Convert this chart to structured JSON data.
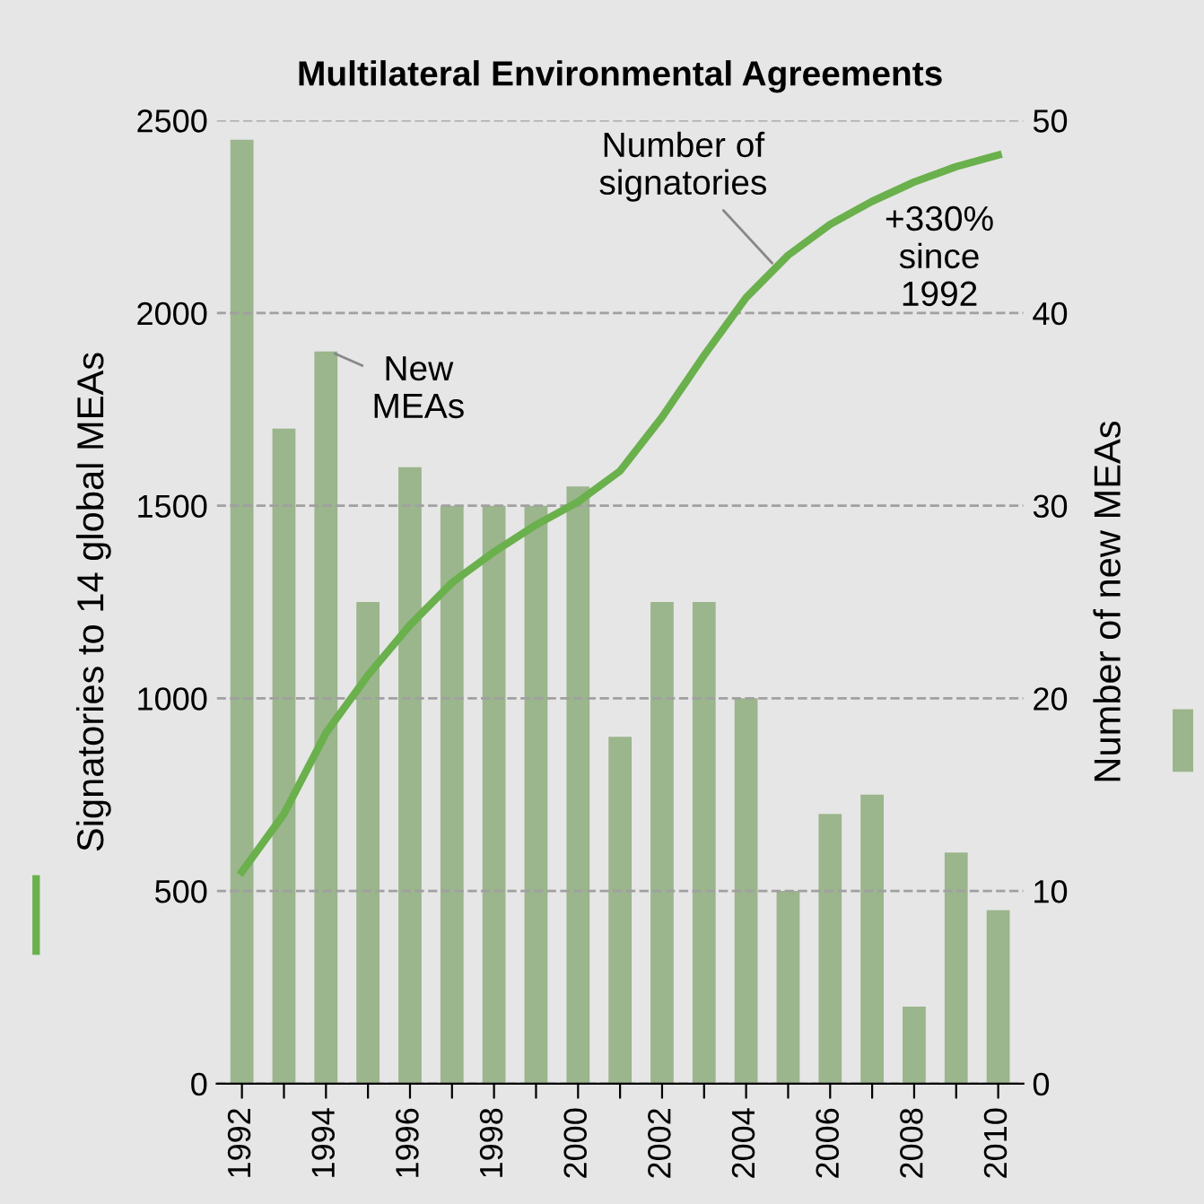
{
  "chart_data": {
    "type": "bar",
    "title": "Multilateral Environmental Agreements",
    "ylabel": "Signatories to 14 global MEAs",
    "y2label": "Number of new MEAs",
    "categories": [
      "1992",
      null,
      "1994",
      null,
      "1996",
      null,
      "1998",
      null,
      "2000",
      null,
      "2002",
      null,
      "2004",
      null,
      "2006",
      null,
      "2008",
      null,
      "2010"
    ],
    "series": [
      {
        "name": "New MEAs",
        "axis": "y2",
        "color": "#9bb58c",
        "values": [
          49,
          34,
          38,
          25,
          32,
          30,
          30,
          30,
          31,
          18,
          25,
          25,
          20,
          10,
          14,
          15,
          4,
          12,
          9
        ]
      },
      {
        "name": "Number of signatories",
        "type": "line",
        "axis": "y",
        "color": "#6ab04c",
        "values": [
          550,
          700,
          910,
          1060,
          1190,
          1300,
          1380,
          1450,
          1510,
          1590,
          1730,
          1890,
          2040,
          2150,
          2230,
          2290,
          2340,
          2380,
          2410
        ]
      }
    ],
    "ylim": [
      0,
      2500
    ],
    "yticks": [
      0,
      500,
      1000,
      1500,
      2000,
      2500
    ],
    "y2lim": [
      0,
      50
    ],
    "y2ticks": [
      0,
      10,
      20,
      30,
      40,
      50
    ],
    "grid": "y",
    "legend": false,
    "annotations": [
      "+330%\nsince\n1992"
    ]
  }
}
